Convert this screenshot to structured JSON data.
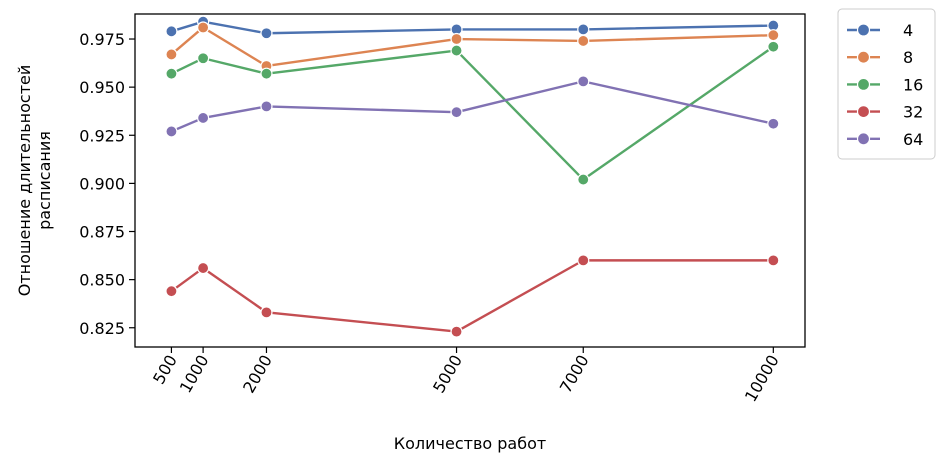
{
  "chart_data": {
    "type": "line",
    "title": "",
    "xlabel": "Количество работ",
    "ylabel_lines": [
      "Отношение длительностей",
      "расписания"
    ],
    "x": [
      500,
      1000,
      2000,
      5000,
      7000,
      10000
    ],
    "x_tick_labels": [
      "500",
      "1000",
      "2000",
      "5000",
      "7000",
      "10000"
    ],
    "y_ticks": [
      0.825,
      0.85,
      0.875,
      0.9,
      0.925,
      0.95,
      0.975
    ],
    "y_tick_labels": [
      "0.825",
      "0.850",
      "0.875",
      "0.900",
      "0.925",
      "0.950",
      "0.975"
    ],
    "xlim": [
      -75,
      10500
    ],
    "ylim": [
      0.815,
      0.988
    ],
    "grid": false,
    "legend_position": "outside-top-right",
    "series": [
      {
        "name": "4",
        "color": "#4c72b0",
        "values": [
          0.979,
          0.984,
          0.978,
          0.98,
          0.98,
          0.982
        ]
      },
      {
        "name": "8",
        "color": "#dd8452",
        "values": [
          0.967,
          0.981,
          0.961,
          0.975,
          0.974,
          0.977
        ]
      },
      {
        "name": "16",
        "color": "#55a868",
        "values": [
          0.957,
          0.965,
          0.957,
          0.969,
          0.902,
          0.971
        ]
      },
      {
        "name": "32",
        "color": "#c44e52",
        "values": [
          0.844,
          0.856,
          0.833,
          0.823,
          0.86,
          0.86
        ]
      },
      {
        "name": "64",
        "color": "#8172b3",
        "values": [
          0.927,
          0.934,
          0.94,
          0.937,
          0.953,
          0.931
        ]
      }
    ]
  }
}
